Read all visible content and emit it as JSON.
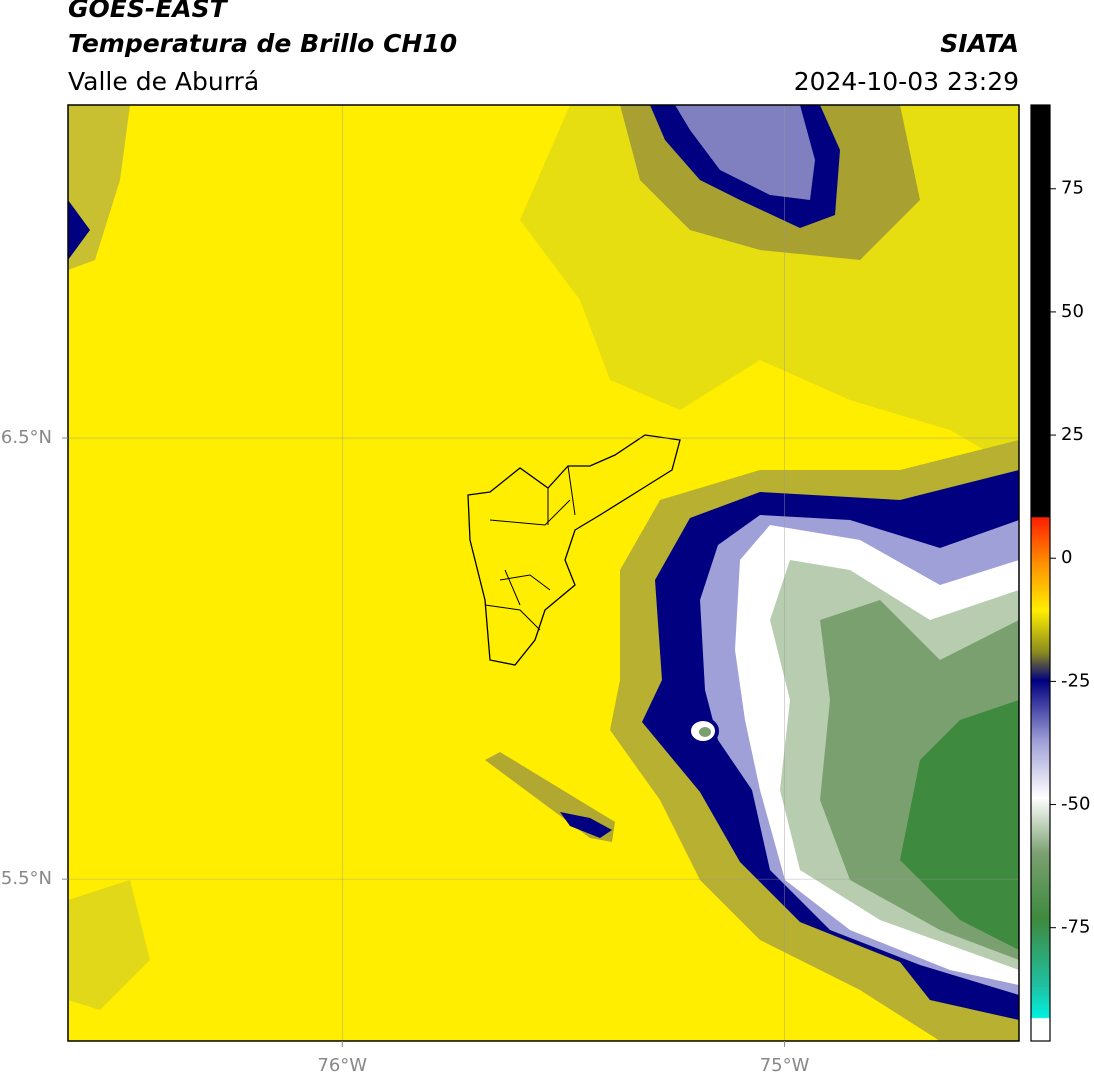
{
  "header": {
    "title": "GOES-EAST",
    "subtitle": "Temperatura de Brillo CH10",
    "region": "Valle de Aburrá",
    "source": "SIATA",
    "timestamp": "2024-10-03 23:29"
  },
  "map": {
    "xlim": [
      -76.62,
      -74.47
    ],
    "ylim": [
      5.133,
      7.255
    ],
    "xticks": [
      {
        "value": -76,
        "label": "76°W"
      },
      {
        "value": -75,
        "label": "75°W"
      }
    ],
    "yticks": [
      {
        "value": 6.5,
        "label": "6.5°N"
      },
      {
        "value": 5.5,
        "label": "5.5°N"
      }
    ],
    "grid": true
  },
  "colorbar": {
    "lim": [
      -98,
      92
    ],
    "ticks": [
      75,
      50,
      25,
      0,
      -25,
      -50,
      -75
    ]
  }
}
